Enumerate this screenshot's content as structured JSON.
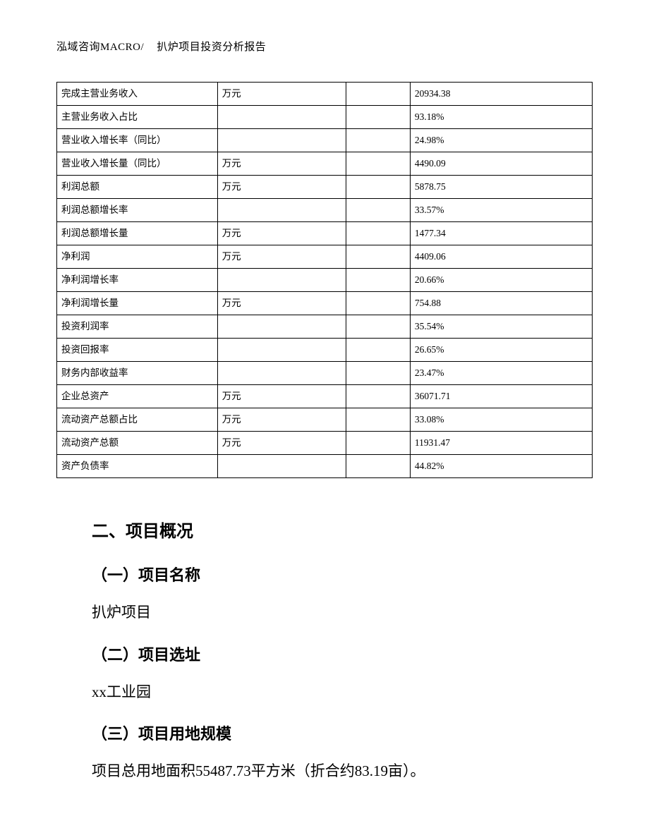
{
  "header": {
    "left": "泓域咨询MACRO/",
    "right": "扒炉项目投资分析报告"
  },
  "table": {
    "rows": [
      {
        "label": "完成主营业务收入",
        "unit": "万元",
        "blank": "",
        "value": "20934.38"
      },
      {
        "label": "主营业务收入占比",
        "unit": "",
        "blank": "",
        "value": "93.18%"
      },
      {
        "label": "营业收入增长率（同比）",
        "unit": "",
        "blank": "",
        "value": "24.98%"
      },
      {
        "label": "营业收入增长量（同比）",
        "unit": "万元",
        "blank": "",
        "value": "4490.09"
      },
      {
        "label": "利润总额",
        "unit": "万元",
        "blank": "",
        "value": "5878.75"
      },
      {
        "label": "利润总额增长率",
        "unit": "",
        "blank": "",
        "value": "33.57%"
      },
      {
        "label": "利润总额增长量",
        "unit": "万元",
        "blank": "",
        "value": "1477.34"
      },
      {
        "label": "净利润",
        "unit": "万元",
        "blank": "",
        "value": "4409.06"
      },
      {
        "label": "净利润增长率",
        "unit": "",
        "blank": "",
        "value": "20.66%"
      },
      {
        "label": "净利润增长量",
        "unit": "万元",
        "blank": "",
        "value": "754.88"
      },
      {
        "label": "投资利润率",
        "unit": "",
        "blank": "",
        "value": "35.54%"
      },
      {
        "label": "投资回报率",
        "unit": "",
        "blank": "",
        "value": "26.65%"
      },
      {
        "label": "财务内部收益率",
        "unit": "",
        "blank": "",
        "value": "23.47%"
      },
      {
        "label": "企业总资产",
        "unit": "万元",
        "blank": "",
        "value": "36071.71"
      },
      {
        "label": "流动资产总额占比",
        "unit": "万元",
        "blank": "",
        "value": "33.08%"
      },
      {
        "label": "流动资产总额",
        "unit": "万元",
        "blank": "",
        "value": "11931.47"
      },
      {
        "label": "资产负债率",
        "unit": "",
        "blank": "",
        "value": "44.82%"
      }
    ]
  },
  "section2": {
    "title": "二、项目概况",
    "sub1_title": "（一）项目名称",
    "sub1_body": "扒炉项目",
    "sub2_title": "（二）项目选址",
    "sub2_body": "xx工业园",
    "sub3_title": "（三）项目用地规模",
    "sub3_body": "项目总用地面积55487.73平方米（折合约83.19亩）。"
  }
}
